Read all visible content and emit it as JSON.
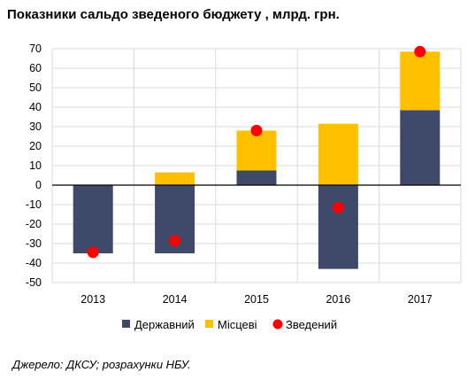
{
  "title": "Показники сальдо зведеного бюджету , млрд. грн.",
  "source": "Джерело: ДКСУ; розрахунки НБУ.",
  "colors": {
    "state": "#3f4a6b",
    "local": "#ffc000",
    "consolidated": "#ff0000",
    "grid": "#d9d9d9",
    "axis": "#000000"
  },
  "chart_data": {
    "type": "bar",
    "stacked": true,
    "title": "Показники сальдо зведеного бюджету , млрд. грн.",
    "xlabel": "",
    "ylabel": "",
    "categories": [
      "2013",
      "2014",
      "2015",
      "2016",
      "2017"
    ],
    "ylim": [
      -50,
      70
    ],
    "yticks": [
      -50,
      -40,
      -30,
      -20,
      -10,
      0,
      10,
      20,
      30,
      40,
      50,
      60,
      70
    ],
    "grid": true,
    "legend_position": "bottom",
    "series": [
      {
        "name": "Державний",
        "type": "bar",
        "color": "#3f4a6b",
        "values": [
          -35,
          -35,
          7.5,
          -43,
          38.5
        ]
      },
      {
        "name": "Місцеві",
        "type": "bar",
        "color": "#ffc000",
        "values": [
          0,
          6.5,
          20.5,
          31.5,
          30
        ]
      },
      {
        "name": "Зведений",
        "type": "marker",
        "color": "#ff0000",
        "values": [
          -34.5,
          -28.5,
          28,
          -11.5,
          68.5
        ]
      }
    ]
  }
}
